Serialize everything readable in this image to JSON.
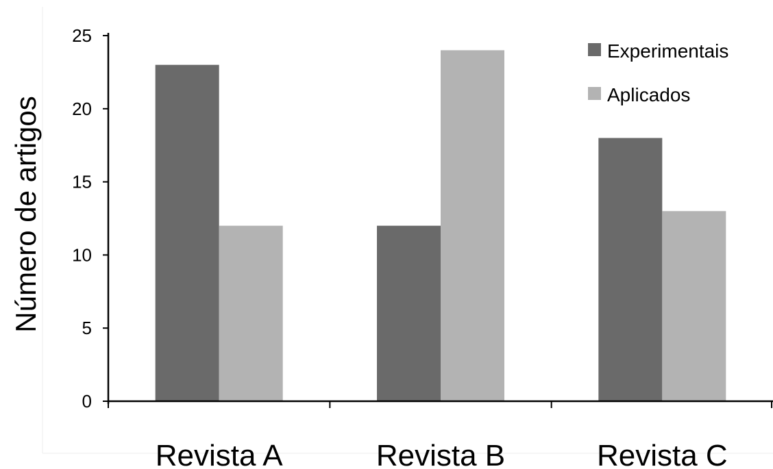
{
  "chart_data": {
    "type": "bar",
    "categories": [
      "Revista A",
      "Revista B",
      "Revista C"
    ],
    "series": [
      {
        "name": "Experimentais",
        "values": [
          23,
          12,
          18
        ],
        "color": "#6a6a6a"
      },
      {
        "name": "Aplicados",
        "values": [
          12,
          24,
          13
        ],
        "color": "#b3b3b3"
      }
    ],
    "title": "",
    "xlabel": "",
    "ylabel": "Número de artigos",
    "ylim": [
      0,
      25
    ],
    "yticks": [
      "0",
      "5",
      "10",
      "15",
      "20",
      "25"
    ],
    "grid": false,
    "legend_position": "top-right"
  }
}
